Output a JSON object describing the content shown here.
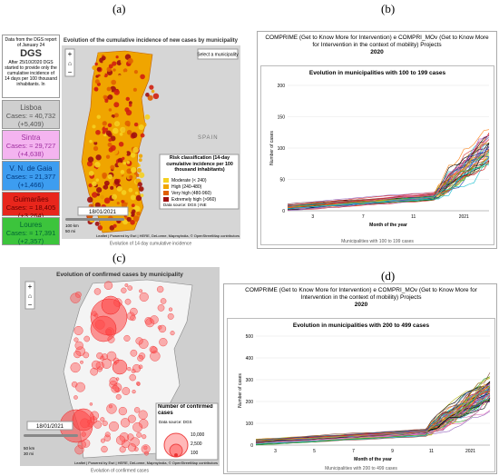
{
  "panel_a": {
    "label": "(a)",
    "sidebar": {
      "note": "Data from the DGS report of January 24",
      "logo": "DGS",
      "note2": "After 25/10/2020 DGS started to provide only the cumulative incidence of 14 days per 100 thousand inhabitants. In",
      "cards": [
        {
          "name": "Lisboa",
          "cases": "Cases: ≈ 40,732",
          "delta": "(+5,409)"
        },
        {
          "name": "Sintra",
          "cases": "Cases: ≈ 29,727",
          "delta": "(+4,638)"
        },
        {
          "name": "V. N. de Gaia",
          "cases": "Cases: ≈ 21,377",
          "delta": "(+1,466)"
        },
        {
          "name": "Guimarães",
          "cases": "Cases: ≈ 18,405",
          "delta": "(+3,264)"
        },
        {
          "name": "Loures",
          "cases": "Cases: ≈ 17,391",
          "delta": "(+2,357)"
        }
      ]
    },
    "title": "Evolution of the cumulative incidence of new cases by municipality",
    "select": "Select a municipality",
    "country": "SPAIN",
    "legend": {
      "title": "Risk classification (14-day cumulative incidence per 100 thousand inhabitants)",
      "items": [
        "Moderate (< 240)",
        "High (240-480)",
        "Very high (480-960)",
        "Extremely high (>960)"
      ],
      "source": "Data source: DGS | INE"
    },
    "date": "18/01/2021",
    "scale_km": "100 km",
    "scale_mi": "50 mi",
    "attribution": "Leaflet | Powered by Esri | HERE, DeLorme, MapmyIndia, © OpenStreetMap contributors",
    "footer": "Evolution of 14 day cumulative incidence"
  },
  "panel_b": {
    "label": "(b)",
    "header": "COMPRIME (Get to Know More for Intervention) e COMPRI_MOv (Get to Know More for Intervention in the context of mobility) Projects",
    "year": "2020",
    "title": "Evolution in municipalities with 100 to 199 cases",
    "y_label": "Number of cases",
    "x_label": "Month of the year",
    "ylim": [
      0,
      200
    ],
    "yticks": [
      0,
      50,
      100,
      150,
      200
    ],
    "xticks": [
      "3",
      "7",
      "11",
      "2021"
    ],
    "footer": "Municipalities with 100 to 199 cases"
  },
  "panel_c": {
    "label": "(c)",
    "title": "Evolution of confirmed cases by municipality",
    "legend_title": "Number of confirmed cases",
    "source": "Data source: DGS",
    "sizes": [
      "10,000",
      "2,500",
      "100"
    ],
    "date": "18/01/2021",
    "scale_km": "50 km",
    "scale_mi": "30 mi",
    "attribution": "Leaflet | Powered by Esri | HERE, DeLorme, MapmyIndia, © OpenStreetMap contributors",
    "footer": "Evolution of confirmed cases"
  },
  "panel_d": {
    "label": "(d)",
    "header": "COMPRIME (Get to Know More for Intervention) e COMPRI_MOv (Get to Know More for Intervention in the context of mobility) Projects",
    "year": "2020",
    "title": "Evolution in municipalities with 200 to 499 cases",
    "y_label": "Number of cases",
    "x_label": "Month of the year",
    "ylim": [
      0,
      500
    ],
    "yticks": [
      0,
      100,
      200,
      300,
      400,
      500
    ],
    "xticks": [
      "3",
      "5",
      "7",
      "9",
      "11",
      "2021"
    ],
    "footer": "Municipalities with 200 to 499 cases"
  }
}
